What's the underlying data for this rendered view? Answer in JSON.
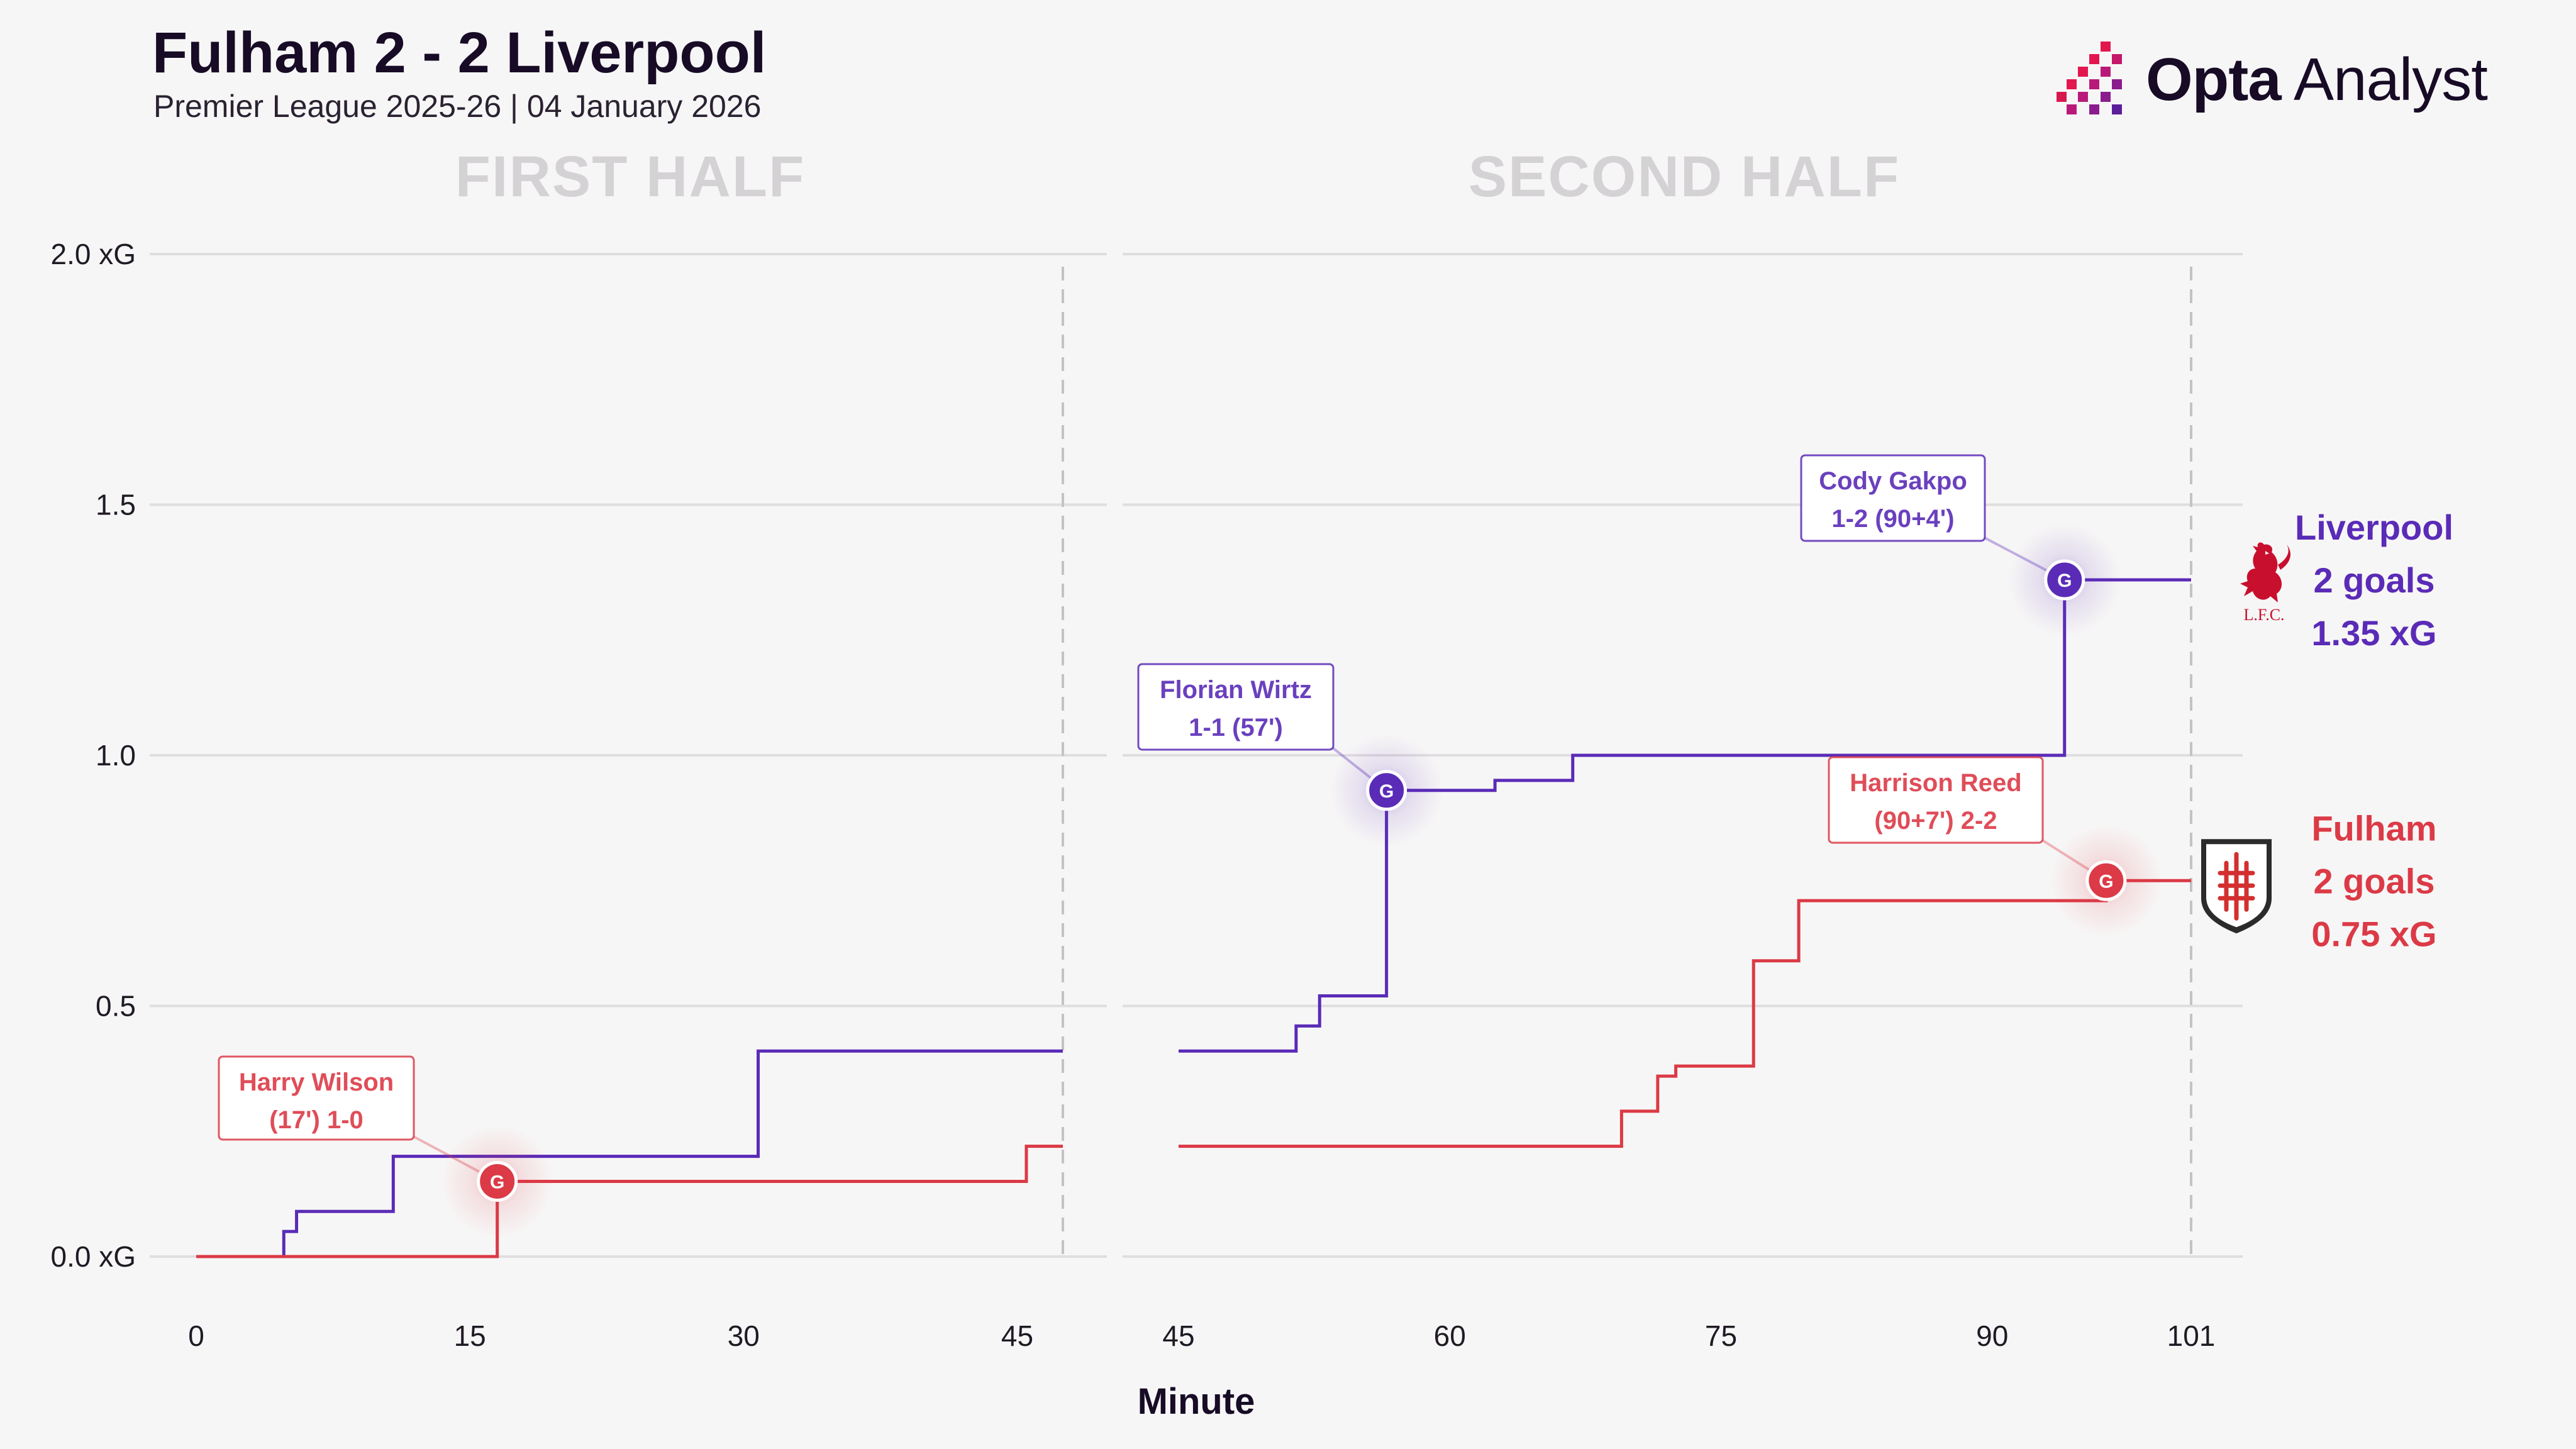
{
  "header": {
    "title": "Fulham 2 - 2 Liverpool",
    "subtitle": "Premier League 2025-26 | 04 January 2026",
    "brand_bold": "Opta",
    "brand_light": " Analyst"
  },
  "chart_data": {
    "type": "line",
    "subtype": "cumulative xG step chart",
    "xlabel": "Minute",
    "ylabel": "xG",
    "ylim": [
      0,
      2.0
    ],
    "yticks": [
      {
        "value": 0.0,
        "label": "0.0 xG"
      },
      {
        "value": 0.5,
        "label": "0.5"
      },
      {
        "value": 1.0,
        "label": "1.0"
      },
      {
        "value": 1.5,
        "label": "1.5"
      },
      {
        "value": 2.0,
        "label": "2.0 xG"
      }
    ],
    "panels": [
      {
        "name": "FIRST HALF",
        "xlim": [
          0,
          47.5
        ],
        "end_marker": 47.5,
        "xticks": [
          {
            "value": 0,
            "label": "0"
          },
          {
            "value": 15,
            "label": "15"
          },
          {
            "value": 30,
            "label": "30"
          },
          {
            "value": 45,
            "label": "45"
          }
        ]
      },
      {
        "name": "SECOND HALF",
        "xlim": [
          45,
          101
        ],
        "end_marker": 101,
        "xticks": [
          {
            "value": 45,
            "label": "45"
          },
          {
            "value": 60,
            "label": "60"
          },
          {
            "value": 75,
            "label": "75"
          },
          {
            "value": 90,
            "label": "90"
          },
          {
            "value": 101,
            "label": "101"
          }
        ]
      }
    ],
    "series": [
      {
        "name": "Liverpool",
        "color": "#5a2bb7",
        "goals_label": "2 goals",
        "xg_label": "1.35 xG",
        "crest": "liverbird-crest-icon",
        "crest_text": "L.F.C.",
        "halves": [
          [
            [
              0,
              0
            ],
            [
              4.8,
              0.05
            ],
            [
              5.5,
              0.09
            ],
            [
              10.8,
              0.2
            ],
            [
              30.8,
              0.41
            ],
            [
              47.5,
              0.41
            ]
          ],
          [
            [
              45,
              0.41
            ],
            [
              51.5,
              0.46
            ],
            [
              52.8,
              0.52
            ],
            [
              56.5,
              0.93
            ],
            [
              62.5,
              0.95
            ],
            [
              66.8,
              1.0
            ],
            [
              94,
              1.35
            ],
            [
              101,
              1.35
            ]
          ]
        ],
        "goals": [
          {
            "half": 1,
            "minute": 56.5,
            "xg": 0.93,
            "label_line1": "Florian Wirtz",
            "label_line2": "1-1 (57')"
          },
          {
            "half": 1,
            "minute": 94,
            "xg": 1.35,
            "label_line1": "Cody Gakpo",
            "label_line2": "1-2 (90+4')"
          }
        ]
      },
      {
        "name": "Fulham",
        "color": "#db3a46",
        "goals_label": "2 goals",
        "xg_label": "0.75 xG",
        "crest": "fulham-crest-icon",
        "halves": [
          [
            [
              0,
              0
            ],
            [
              16.5,
              0.15
            ],
            [
              45.5,
              0.22
            ],
            [
              47.5,
              0.22
            ]
          ],
          [
            [
              45,
              0.22
            ],
            [
              69.5,
              0.29
            ],
            [
              71.5,
              0.36
            ],
            [
              72.5,
              0.38
            ],
            [
              76.8,
              0.59
            ],
            [
              79.3,
              0.71
            ],
            [
              96.3,
              0.75
            ],
            [
              101,
              0.75
            ]
          ]
        ],
        "goals": [
          {
            "half": 0,
            "minute": 16.5,
            "xg": 0.15,
            "label_line1": "Harry Wilson",
            "label_line2": "(17') 1-0"
          },
          {
            "half": 1,
            "minute": 96.3,
            "xg": 0.75,
            "label_line1": "Harrison Reed",
            "label_line2": "(90+7') 2-2"
          }
        ]
      }
    ],
    "goal_marker_text": "G"
  }
}
